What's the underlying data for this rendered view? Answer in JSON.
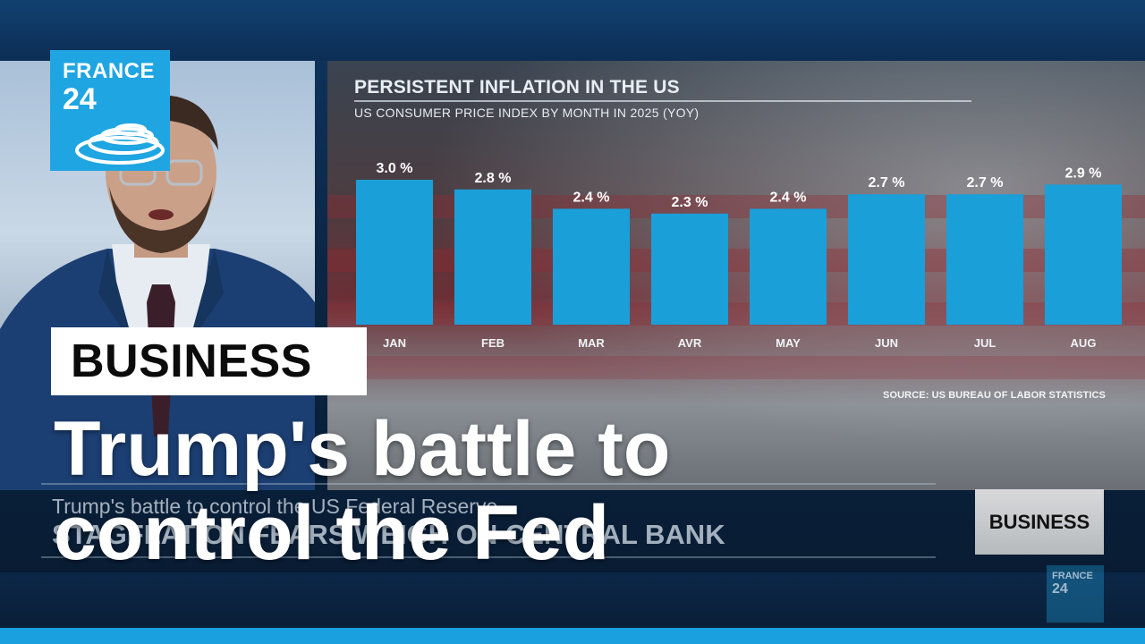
{
  "logo": {
    "line1": "FRANCE",
    "line2": "24",
    "color": "#1fa5e2"
  },
  "category": {
    "label": "BUSINESS"
  },
  "headline": {
    "text": "Trump's battle to control the Fed"
  },
  "ticker": {
    "line1": "Trump's battle to control the US Federal Reserve",
    "line2": "STAGFLATION FEARS WEIGH ON CENTRAL BANK"
  },
  "side_badge": {
    "label": "BUSINESS"
  },
  "colors": {
    "accent": "#1aa0de",
    "bar": "#1a9fd9"
  },
  "chart_data": {
    "type": "bar",
    "title": "PERSISTENT INFLATION IN THE US",
    "subtitle": "US CONSUMER PRICE INDEX BY MONTH IN 2025 (YOY)",
    "categories": [
      "JAN",
      "FEB",
      "MAR",
      "AVR",
      "MAY",
      "JUN",
      "JUL",
      "AUG"
    ],
    "values": [
      3.0,
      2.8,
      2.4,
      2.3,
      2.4,
      2.7,
      2.7,
      2.9
    ],
    "data_labels": [
      "3.0 %",
      "2.8 %",
      "2.4 %",
      "2.3 %",
      "2.4 %",
      "2.7 %",
      "2.7 %",
      "2.9 %"
    ],
    "source": "SOURCE: US BUREAU OF LABOR STATISTICS",
    "grid": false,
    "ylim": [
      0,
      3.0
    ]
  }
}
